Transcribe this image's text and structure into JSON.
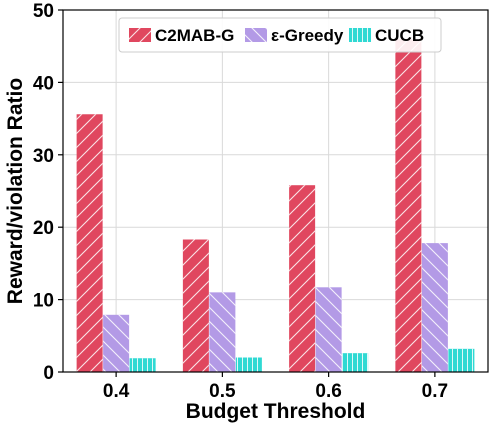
{
  "chart_data": {
    "type": "bar",
    "xlabel": "Budget Threshold",
    "ylabel": "Reward/violation Ratio",
    "categories": [
      "0.4",
      "0.5",
      "0.6",
      "0.7"
    ],
    "ylim": [
      0,
      50
    ],
    "yticks": [
      0,
      10,
      20,
      30,
      40,
      50
    ],
    "grid": true,
    "legend_position": "top-center",
    "series": [
      {
        "name": "C2MAB-G",
        "values": [
          35.6,
          18.3,
          25.8,
          46.0
        ],
        "color": "#e0475f",
        "hatch": "/"
      },
      {
        "name": "ε-Greedy",
        "values": [
          7.9,
          11.0,
          11.7,
          17.8
        ],
        "color": "#b39ae6",
        "hatch": "\\"
      },
      {
        "name": "CUCB",
        "values": [
          1.9,
          2.0,
          2.6,
          3.2
        ],
        "color": "#2fd9d3",
        "hatch": "|"
      }
    ]
  }
}
